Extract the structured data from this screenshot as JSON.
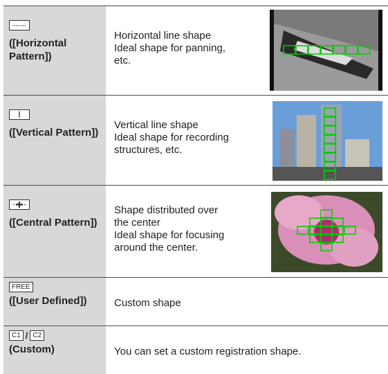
{
  "rows": [
    {
      "icon": null,
      "label": "([Horizontal Pattern])",
      "lines": [
        "Horizontal line shape",
        "Ideal shape for panning,",
        "etc."
      ]
    },
    {
      "icon": null,
      "label": "([Vertical Pattern])",
      "lines": [
        "Vertical line shape",
        "Ideal shape for recording",
        "structures, etc."
      ]
    },
    {
      "icon": null,
      "label": "([Central Pattern])",
      "lines": [
        "Shape distributed over",
        "the center",
        "Ideal shape for focusing",
        "around the center."
      ]
    },
    {
      "icon": "FREE",
      "label": "([User Defined])",
      "lines": [
        "Custom shape"
      ]
    },
    {
      "icon": [
        "C1",
        "/",
        "C2"
      ],
      "label": "(Custom)",
      "lines": [
        "You can set a custom registration shape."
      ]
    }
  ]
}
